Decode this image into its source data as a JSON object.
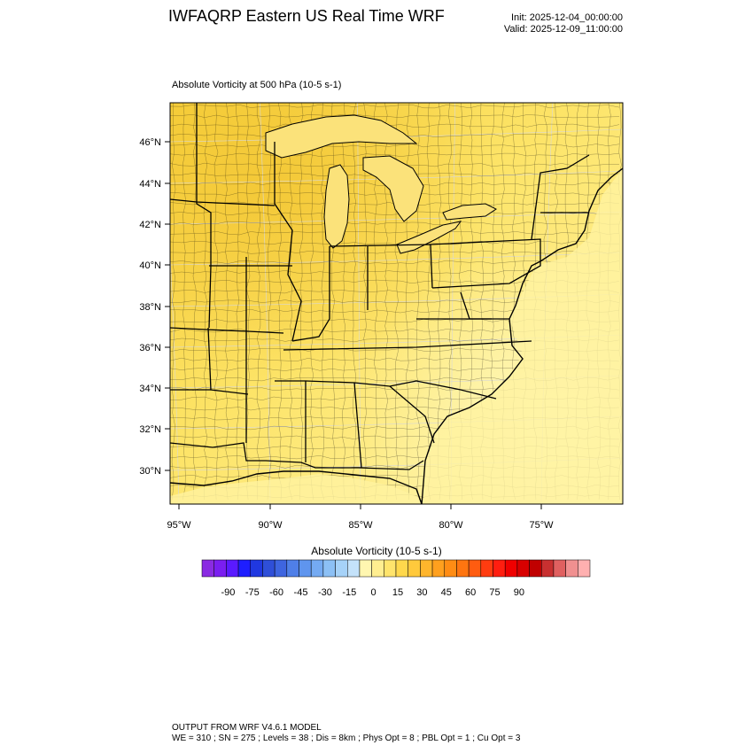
{
  "header": {
    "title": "IWFAQRP Eastern US Real Time WRF",
    "init": "Init: 2025-12-04_00:00:00",
    "valid": "Valid: 2025-12-09_11:00:00"
  },
  "field_title": "Absolute Vorticity at 500 hPa   (10-5 s-1)",
  "map": {
    "lat_labels": [
      "46°N",
      "44°N",
      "42°N",
      "40°N",
      "38°N",
      "36°N",
      "34°N",
      "32°N",
      "30°N"
    ],
    "lon_labels": [
      "95°W",
      "90°W",
      "85°W",
      "80°W",
      "75°W"
    ],
    "fill_colors": {
      "low": "#fff6a8",
      "mid": "#fde96a",
      "high": "#f6cf3a",
      "border": "#000000",
      "grid": "#d8d8d8"
    }
  },
  "colorbar": {
    "title": "Absolute Vorticity  (10-5 s-1)",
    "tick_labels": [
      "-90",
      "-75",
      "-60",
      "-45",
      "-30",
      "-15",
      "0",
      "15",
      "30",
      "45",
      "60",
      "75",
      "90"
    ],
    "colors": [
      "#8a2be2",
      "#7a1ef0",
      "#5a1aff",
      "#1e1eff",
      "#2038e0",
      "#2f4fd8",
      "#3e65e0",
      "#4f7fe8",
      "#5f95ee",
      "#74aaf2",
      "#8cc0f5",
      "#a6d2f8",
      "#c4e2fa",
      "#fff6b0",
      "#ffee90",
      "#ffe46c",
      "#ffd84c",
      "#ffc93c",
      "#ffb52c",
      "#ffa01e",
      "#ff8c14",
      "#ff7510",
      "#ff5c10",
      "#ff3c10",
      "#ff1e10",
      "#f00000",
      "#d80000",
      "#c00000",
      "#c83030",
      "#e06060",
      "#f09090",
      "#ffb0b0"
    ]
  },
  "footer": {
    "line1": "OUTPUT FROM WRF V4.6.1 MODEL",
    "line2": "WE = 310 ; SN = 275 ; Levels = 38 ; Dis = 8km ; Phys Opt = 8 ; PBL Opt = 1 ; Cu Opt = 3"
  }
}
